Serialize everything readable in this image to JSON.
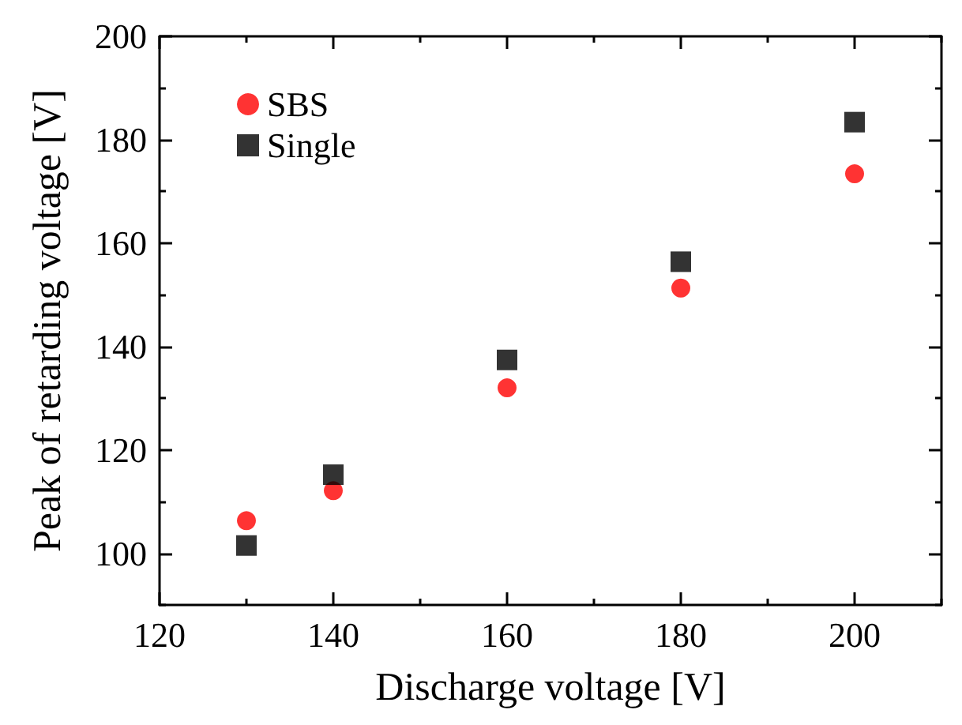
{
  "chart_data": {
    "type": "scatter",
    "xlabel": "Discharge voltage [V]",
    "ylabel": "Peak of retarding voltage [V]",
    "x": [
      130,
      140,
      160,
      180,
      200
    ],
    "series": [
      {
        "name": "SBS",
        "color": "#ff0000",
        "marker": "circle",
        "values": [
          106.3,
          112.1,
          132.0,
          151.3,
          173.4
        ]
      },
      {
        "name": "Single",
        "color": "#000000",
        "marker": "square",
        "values": [
          101.5,
          115.2,
          137.4,
          156.4,
          183.4
        ]
      }
    ],
    "xlim": [
      120,
      210
    ],
    "xticks": [
      120,
      140,
      160,
      180,
      200
    ],
    "ylim": [
      90,
      200
    ],
    "yticks": [
      100,
      120,
      140,
      160,
      180,
      200
    ],
    "grid": false,
    "legend": "top left"
  }
}
